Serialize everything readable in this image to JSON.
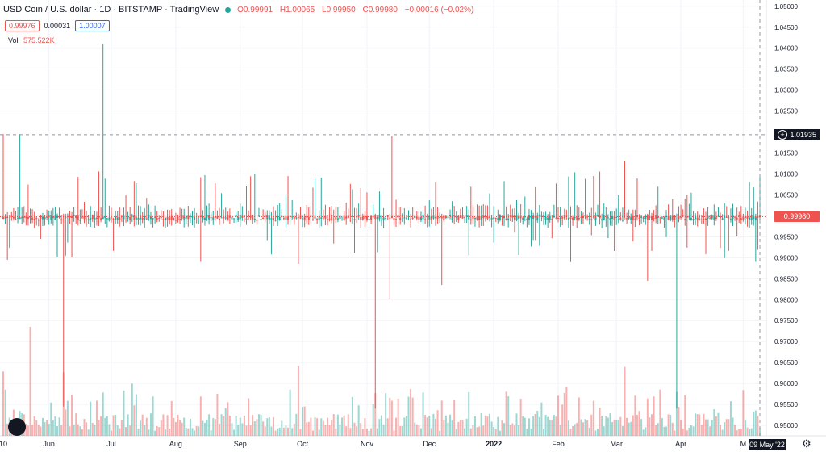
{
  "header": {
    "symbol": "USD Coin / U.S. dollar · 1D · BITSTAMP · TradingView",
    "open": "O0.99991",
    "high": "H1.00065",
    "low": "L0.99950",
    "close": "C0.99980",
    "change": "−0.00016 (−0.02%)"
  },
  "trade": {
    "sell": "0.99976",
    "spread": "0.00031",
    "buy": "1.00007"
  },
  "volume": {
    "label": "Vol",
    "value": "575.522K"
  },
  "colors": {
    "up": "#26a69a",
    "down": "#ef5350",
    "crosshair": "#9598a1",
    "grid": "#f0f3fa"
  },
  "price_axis": {
    "labels": [
      "1.05000",
      "1.04500",
      "1.04000",
      "1.03500",
      "1.03000",
      "1.02500",
      "1.02000",
      "1.01500",
      "1.01000",
      "1.00500",
      "1.00000",
      "0.99500",
      "0.99000",
      "0.98500",
      "0.98000",
      "0.97500",
      "0.97000",
      "0.96500",
      "0.96000",
      "0.95500",
      "0.95000"
    ],
    "last_price": "0.99980",
    "crosshair_price": "1.01935"
  },
  "time_axis": {
    "labels": [
      "10",
      "Jun",
      "Jul",
      "Aug",
      "Sep",
      "Oct",
      "Nov",
      "Dec",
      "2022",
      "Feb",
      "Mar",
      "Apr",
      "M"
    ],
    "crosshair_date": "09 May '22"
  },
  "chart_data": {
    "type": "candlestick",
    "title": "USD Coin / U.S. dollar · 1D · BITSTAMP",
    "x_range": [
      "2021-05-10",
      "2022-05-09"
    ],
    "ylim": [
      0.9475,
      1.0515
    ],
    "grid": true,
    "last_close": 0.9998,
    "crosshair": {
      "price": 1.01935,
      "date": "2022-05-09"
    },
    "notable_wicks": [
      {
        "date": "2021-05-10",
        "high": 1.0195,
        "low": 0.9995,
        "direction": "down"
      },
      {
        "date": "2021-05-18",
        "high": 1.0195,
        "low": 0.9995,
        "direction": "up"
      },
      {
        "date": "2021-06-08",
        "high": 1.0005,
        "low": 0.9545,
        "direction": "down"
      },
      {
        "date": "2021-06-09",
        "high": 1.0005,
        "low": 0.9905,
        "direction": "down"
      },
      {
        "date": "2021-06-27",
        "high": 1.041,
        "low": 0.9995,
        "direction": "up"
      },
      {
        "date": "2021-09-29",
        "high": 1.0005,
        "low": 0.9885,
        "direction": "down"
      },
      {
        "date": "2021-11-05",
        "high": 1.0005,
        "low": 0.954,
        "direction": "down"
      },
      {
        "date": "2021-11-12",
        "high": 1.0005,
        "low": 0.98,
        "direction": "down"
      },
      {
        "date": "2021-11-13",
        "high": 1.019,
        "low": 0.9995,
        "direction": "down"
      },
      {
        "date": "2021-12-07",
        "high": 1.0005,
        "low": 0.9835,
        "direction": "down"
      },
      {
        "date": "2022-03-05",
        "high": 1.013,
        "low": 0.9995,
        "direction": "down"
      },
      {
        "date": "2022-03-16",
        "high": 1.0005,
        "low": 0.9845,
        "direction": "down"
      },
      {
        "date": "2022-03-30",
        "high": 1.0005,
        "low": 0.954,
        "direction": "up"
      },
      {
        "date": "2022-05-07",
        "high": 1.0005,
        "low": 0.989,
        "direction": "up"
      }
    ],
    "typical_daily_range": [
      0.9985,
      1.001
    ],
    "volume": {
      "last": "575.522K",
      "peak_date": "2021-05-23"
    }
  }
}
